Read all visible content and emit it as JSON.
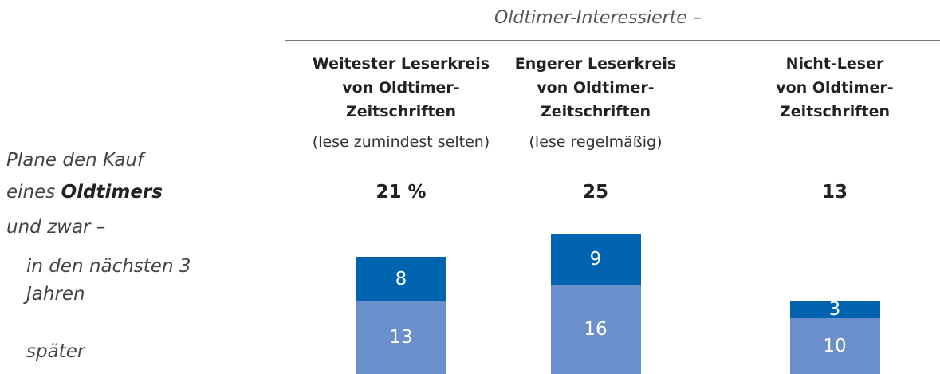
{
  "chart_data": {
    "type": "stacked-bar",
    "header": "Oldtimer-Interessierte –",
    "question": {
      "line1": "Plane den Kauf",
      "line2": "eines",
      "emphasis": "Oldtimers",
      "line3": "und zwar –"
    },
    "categories": [
      [
        "Weitester Leserkreis",
        "von Oldtimer-",
        "Zeitschriften"
      ],
      [
        "Engerer Leserkreis",
        "von Oldtimer-",
        "Zeitschriften"
      ],
      [
        "Nicht-Leser",
        "von Oldtimer-",
        "Zeitschriften"
      ]
    ],
    "category_notes": [
      "(lese zumindest selten)",
      "(lese regelmäßig)",
      null
    ],
    "totals": {
      "values": [
        21,
        25,
        13
      ],
      "value_labels": [
        "21 %",
        "25",
        "13"
      ]
    },
    "series": [
      {
        "name": "später",
        "color": "#6a8fcb",
        "values": [
          13,
          16,
          10
        ]
      },
      {
        "name": "in den nächsten 3 Jahren",
        "color": "#0063b0",
        "values": [
          8,
          9,
          3
        ]
      }
    ]
  }
}
